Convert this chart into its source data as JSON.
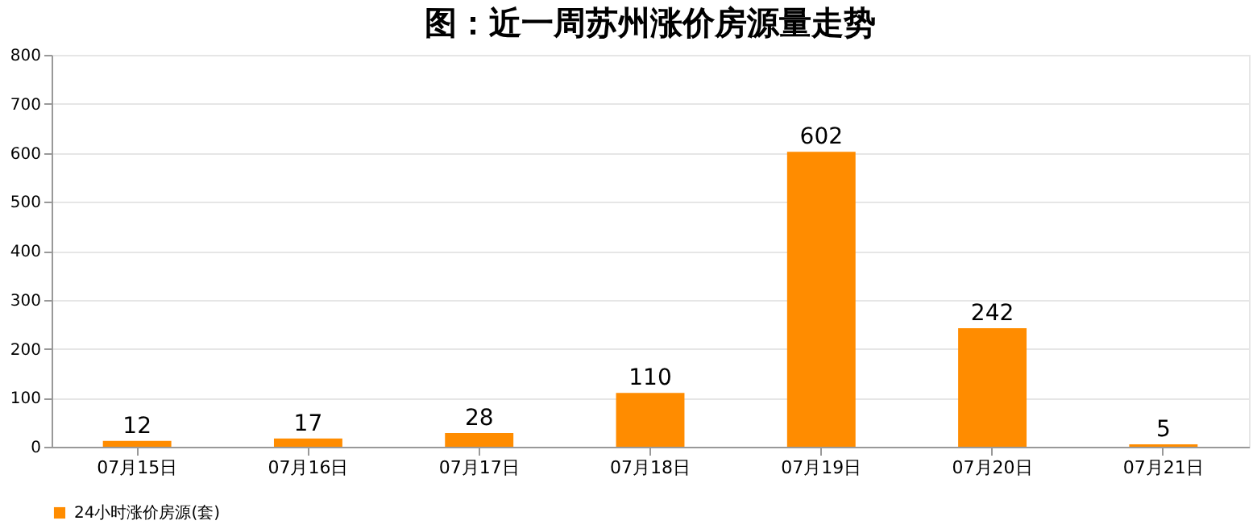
{
  "chart_data": {
    "type": "bar",
    "title": "图：近一周苏州涨价房源量走势",
    "categories": [
      "07月15日",
      "07月16日",
      "07月17日",
      "07月18日",
      "07月19日",
      "07月20日",
      "07月21日"
    ],
    "series": [
      {
        "name": "24小时涨价房源(套)",
        "color": "#ff8c00",
        "values": [
          12,
          17,
          28,
          110,
          602,
          242,
          5
        ]
      }
    ],
    "ylim": [
      0,
      800
    ],
    "yticks": [
      0,
      100,
      200,
      300,
      400,
      500,
      600,
      700,
      800
    ],
    "grid": "y",
    "legend": "bottom",
    "data_labels": true
  }
}
